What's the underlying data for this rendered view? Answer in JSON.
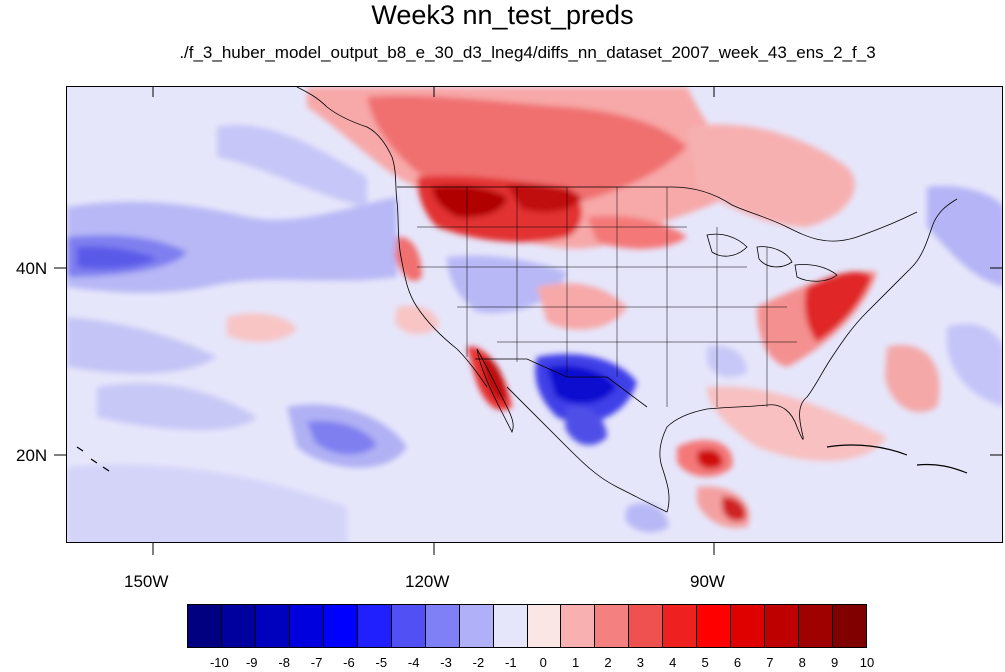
{
  "title": "Week3 nn_test_preds",
  "subtitle": "./f_3_huber_model_output_b8_e_30_d3_lneg4/diffs_nn_dataset_2007_week_43_ens_2_f_3",
  "map": {
    "projection": "cylindrical-equidistant",
    "lon_range": [
      -160,
      -60
    ],
    "lat_range": [
      11,
      60
    ],
    "lon_labels": [
      "150W",
      "120W",
      "90W"
    ],
    "lat_labels": [
      "40N",
      "20N"
    ],
    "background_color": "#e8e8fb"
  },
  "colorbar": {
    "colors": [
      "#000080",
      "#00009f",
      "#0000bf",
      "#0000df",
      "#0000ff",
      "#2020ff",
      "#5050f4",
      "#8080f6",
      "#b0b0f8",
      "#e6e6fb",
      "#fbe6e6",
      "#f8b0b0",
      "#f48080",
      "#ef5050",
      "#ef2020",
      "#ff0000",
      "#df0000",
      "#bf0000",
      "#9f0000",
      "#800000"
    ],
    "labels": [
      "-10",
      "-9",
      "-8",
      "-7",
      "-6",
      "-5",
      "-4",
      "-3",
      "-2",
      "-1",
      "0",
      "1",
      "2",
      "3",
      "4",
      "5",
      "6",
      "7",
      "8",
      "9",
      "10"
    ]
  }
}
